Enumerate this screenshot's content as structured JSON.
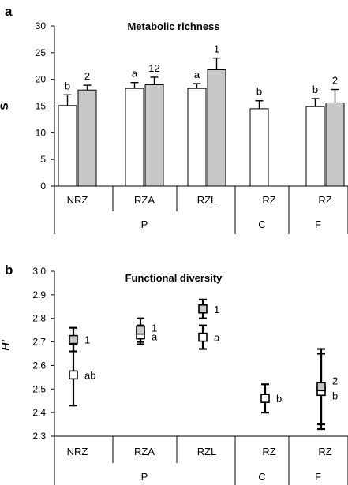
{
  "chart_data": [
    {
      "panel": "a",
      "type": "bar",
      "title": "Metabolic richness",
      "ylabel": "S",
      "ylim": [
        0,
        30
      ],
      "yticks": [
        0,
        5,
        10,
        15,
        20,
        25,
        30
      ],
      "categories": [
        "NRZ",
        "RZA",
        "RZL",
        "RZ",
        "RZ"
      ],
      "groups": [
        "P",
        "C",
        "F"
      ],
      "series": [
        {
          "name": "white",
          "color": "#ffffff",
          "values": [
            15.1,
            18.3,
            18.3,
            14.5,
            14.9
          ],
          "errors": [
            2.0,
            1.1,
            0.9,
            1.5,
            1.5
          ],
          "labels": [
            "b",
            "a",
            "a",
            "b",
            "b"
          ]
        },
        {
          "name": "grey",
          "color": "#c8c8c8",
          "values": [
            18.0,
            19.0,
            21.8,
            null,
            15.6
          ],
          "errors": [
            0.9,
            1.4,
            2.2,
            null,
            2.5
          ],
          "labels": [
            "2",
            "12",
            "1",
            "",
            "2"
          ]
        }
      ]
    },
    {
      "panel": "b",
      "type": "scatter",
      "title": "Functional diversity",
      "ylabel": "H'",
      "ylim": [
        2.3,
        3.0
      ],
      "yticks": [
        "2.3",
        "2.4",
        "2.5",
        "2.6",
        "2.7",
        "2.8",
        "2.9",
        "3.0"
      ],
      "categories": [
        "NRZ",
        "RZA",
        "RZL",
        "RZ",
        "RZ"
      ],
      "groups": [
        "P",
        "C",
        "F"
      ],
      "series": [
        {
          "name": "white",
          "color": "#ffffff",
          "values": [
            2.56,
            2.73,
            2.72,
            2.46,
            2.49
          ],
          "errors": [
            0.13,
            0.04,
            0.05,
            0.06,
            0.16
          ],
          "labels": [
            "ab",
            "a",
            "a",
            "b",
            "b"
          ]
        },
        {
          "name": "grey",
          "color": "#c8c8c8",
          "values": [
            2.71,
            2.75,
            2.84,
            null,
            2.51
          ],
          "errors": [
            0.05,
            0.05,
            0.04,
            null,
            0.16
          ],
          "labels": [
            "1",
            "1",
            "1",
            "",
            "2"
          ]
        }
      ]
    }
  ]
}
